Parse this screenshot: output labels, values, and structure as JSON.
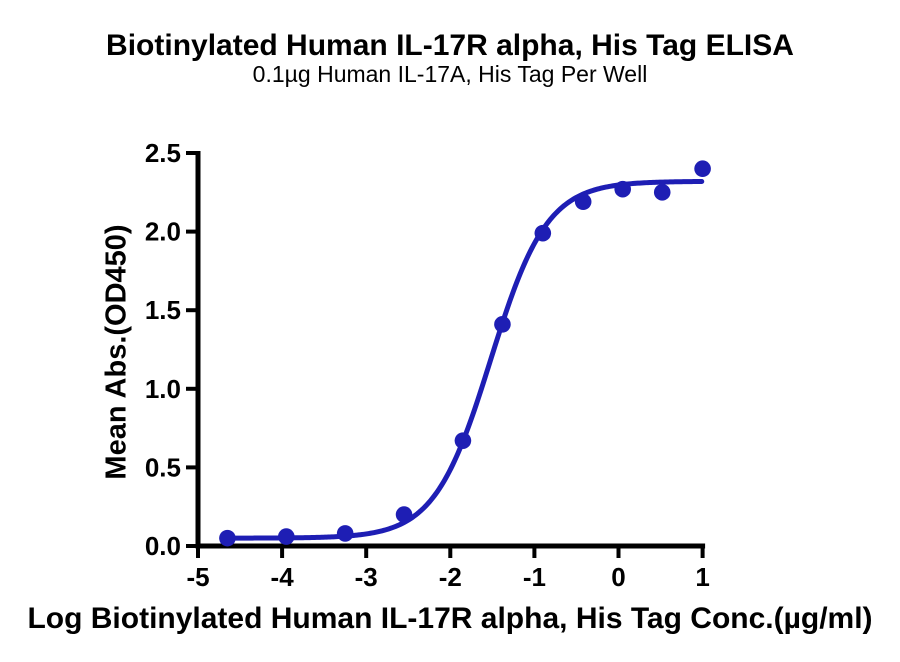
{
  "chart_data": {
    "type": "scatter",
    "title": "Biotinylated Human IL-17R alpha, His Tag ELISA",
    "subtitle": "0.1µg Human IL-17A, His Tag Per Well",
    "xlabel": "Log Biotinylated Human IL-17R alpha, His Tag Conc.(µg/ml)",
    "ylabel": "Mean Abs.(OD450)",
    "xlim": [
      -5,
      1
    ],
    "ylim": [
      0,
      2.5
    ],
    "x_ticks": [
      "-5",
      "-4",
      "-3",
      "-2",
      "-1",
      "0",
      "1"
    ],
    "y_ticks": [
      "0.0",
      "0.5",
      "1.0",
      "1.5",
      "2.0",
      "2.5"
    ],
    "grid": false,
    "legend": "none",
    "axis_color": "#000000",
    "text_color": "#000000",
    "series": [
      {
        "name": "Biotinylated Human IL-17R alpha, His Tag",
        "color": "#1e1eb4",
        "points": [
          {
            "x": -4.65,
            "y": 0.05
          },
          {
            "x": -3.95,
            "y": 0.06
          },
          {
            "x": -3.25,
            "y": 0.08
          },
          {
            "x": -2.55,
            "y": 0.2
          },
          {
            "x": -1.85,
            "y": 0.67
          },
          {
            "x": -1.38,
            "y": 1.41
          },
          {
            "x": -0.9,
            "y": 1.99
          },
          {
            "x": -0.42,
            "y": 2.19
          },
          {
            "x": 0.05,
            "y": 2.27
          },
          {
            "x": 0.52,
            "y": 2.25
          },
          {
            "x": 1.0,
            "y": 2.4
          }
        ],
        "fit_curve": {
          "model": "4PL",
          "bottom": 0.05,
          "top": 2.32,
          "logEC50": -1.52,
          "hillslope": 1.3,
          "x_start": -4.65,
          "x_end": 1.0
        }
      }
    ]
  }
}
